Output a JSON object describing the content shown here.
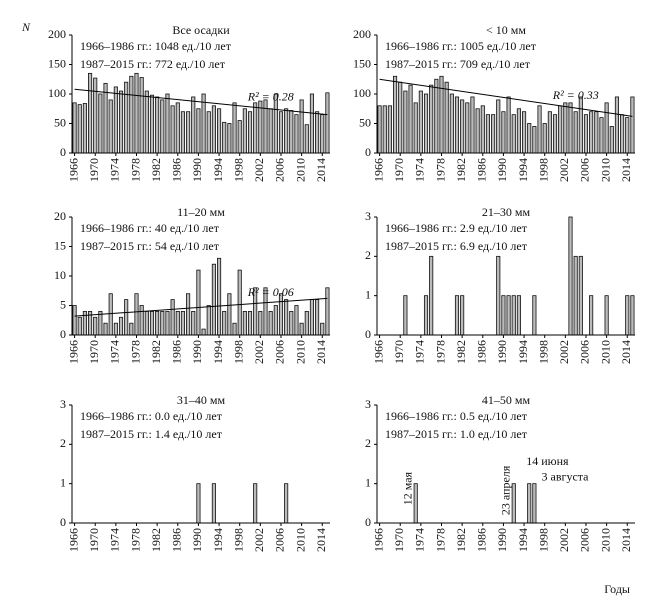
{
  "y_label": "N",
  "x_label": "Годы",
  "chart_data": [
    {
      "type": "bar",
      "title": "Все осадки",
      "lines": [
        "1966–1986 гг.: 1048 ед./10 лет",
        "1987–2015 гг.:  772 ед./10 лет"
      ],
      "r2_label": "R² = 0.28",
      "trend": [
        108,
        65
      ],
      "ylim": [
        0,
        200
      ],
      "yticks": [
        0,
        50,
        100,
        150,
        200
      ],
      "values": [
        85,
        82,
        84,
        135,
        127,
        100,
        118,
        90,
        112,
        105,
        120,
        130,
        135,
        128,
        105,
        98,
        95,
        90,
        100,
        80,
        85,
        70,
        70,
        95,
        75,
        100,
        70,
        80,
        75,
        52,
        50,
        85,
        55,
        75,
        70,
        85,
        88,
        90,
        75,
        100,
        70,
        75,
        72,
        65,
        90,
        48,
        100,
        70,
        65,
        102
      ]
    },
    {
      "type": "bar",
      "title": "< 10 мм",
      "lines": [
        "1966–1986 гг.: 1005 ед./10 лет",
        "1987–2015 гг.:  709 ед./10 лет"
      ],
      "r2_label": "R² = 0.33",
      "trend": [
        125,
        62
      ],
      "ylim": [
        0,
        200
      ],
      "yticks": [
        0,
        50,
        100,
        150,
        200
      ],
      "values": [
        80,
        80,
        80,
        130,
        120,
        105,
        115,
        85,
        105,
        100,
        115,
        125,
        130,
        120,
        100,
        95,
        90,
        85,
        95,
        75,
        80,
        65,
        65,
        90,
        70,
        95,
        65,
        75,
        70,
        50,
        45,
        80,
        50,
        70,
        65,
        80,
        85,
        85,
        70,
        95,
        65,
        70,
        70,
        60,
        85,
        45,
        95,
        65,
        60,
        95
      ]
    },
    {
      "type": "bar",
      "title": "11–20 мм",
      "lines": [
        "1966–1986 гг.: 40 ед./10 лет",
        "1987–2015 гг.: 54 ед./10 лет"
      ],
      "r2_label": "R² = 0.06",
      "trend": [
        3.2,
        6.2
      ],
      "ylim": [
        0,
        20
      ],
      "yticks": [
        0,
        5,
        10,
        15,
        20
      ],
      "values": [
        5,
        3,
        4,
        4,
        3,
        4,
        2,
        7,
        2,
        3,
        6,
        2,
        7,
        5,
        4,
        4,
        4,
        4,
        4,
        6,
        4,
        4,
        7,
        4,
        11,
        1,
        5,
        12,
        13,
        4,
        7,
        2,
        11,
        4,
        4,
        8,
        4,
        8,
        4,
        5,
        7,
        6,
        4,
        5,
        2,
        4,
        6,
        6,
        2,
        8
      ]
    },
    {
      "type": "bar",
      "title": "21–30 мм",
      "lines": [
        "1966–1986 гг.: 2.9 ед./10 лет",
        "1987–2015 гг.: 6.9 ед./10 лет"
      ],
      "ylim": [
        0,
        3
      ],
      "yticks": [
        0,
        1,
        2,
        3
      ],
      "values": [
        0,
        0,
        0,
        0,
        0,
        1,
        0,
        0,
        0,
        1,
        2,
        0,
        0,
        0,
        0,
        1,
        1,
        0,
        0,
        0,
        0,
        0,
        0,
        2,
        1,
        1,
        1,
        1,
        0,
        0,
        1,
        0,
        0,
        0,
        0,
        0,
        0,
        3,
        2,
        2,
        0,
        1,
        0,
        0,
        1,
        0,
        0,
        0,
        1,
        1
      ]
    },
    {
      "type": "bar",
      "title": "31–40 мм",
      "lines": [
        "1966–1986 гг.: 0.0 ед./10 лет",
        "1987–2015 гг.: 1.4 ед./10 лет"
      ],
      "ylim": [
        0,
        3
      ],
      "yticks": [
        0,
        1,
        2,
        3
      ],
      "values": [
        0,
        0,
        0,
        0,
        0,
        0,
        0,
        0,
        0,
        0,
        0,
        0,
        0,
        0,
        0,
        0,
        0,
        0,
        0,
        0,
        0,
        0,
        0,
        0,
        1,
        0,
        0,
        1,
        0,
        0,
        0,
        0,
        0,
        0,
        0,
        1,
        0,
        0,
        0,
        0,
        0,
        1,
        0,
        0,
        0,
        0,
        0,
        0,
        0,
        0
      ]
    },
    {
      "type": "bar",
      "title": "41–50 мм",
      "lines": [
        "1966–1986 гг.: 0.5 ед./10 лет",
        "1987–2015 гг.: 1.0 ед./10 лет"
      ],
      "annotations": [
        "12 мая",
        "23 апреля",
        "14 июня",
        "3 августа"
      ],
      "ylim": [
        0,
        3
      ],
      "yticks": [
        0,
        1,
        2,
        3
      ],
      "values": [
        0,
        0,
        0,
        0,
        0,
        0,
        0,
        1,
        0,
        0,
        0,
        0,
        0,
        0,
        0,
        0,
        0,
        0,
        0,
        0,
        0,
        0,
        0,
        0,
        0,
        0,
        1,
        0,
        0,
        1,
        1,
        0,
        0,
        0,
        0,
        0,
        0,
        0,
        0,
        0,
        0,
        0,
        0,
        0,
        0,
        0,
        0,
        0,
        0,
        0
      ]
    }
  ],
  "categories": [
    "1966",
    null,
    null,
    null,
    "1970",
    null,
    null,
    null,
    "1974",
    null,
    null,
    null,
    "1978",
    null,
    null,
    null,
    "1982",
    null,
    null,
    null,
    "1986",
    null,
    null,
    null,
    "1990",
    null,
    null,
    null,
    "1994",
    null,
    null,
    null,
    "1998",
    null,
    null,
    null,
    "2002",
    null,
    null,
    null,
    "2006",
    null,
    null,
    null,
    "2010",
    null,
    null,
    null,
    "2014",
    null
  ]
}
